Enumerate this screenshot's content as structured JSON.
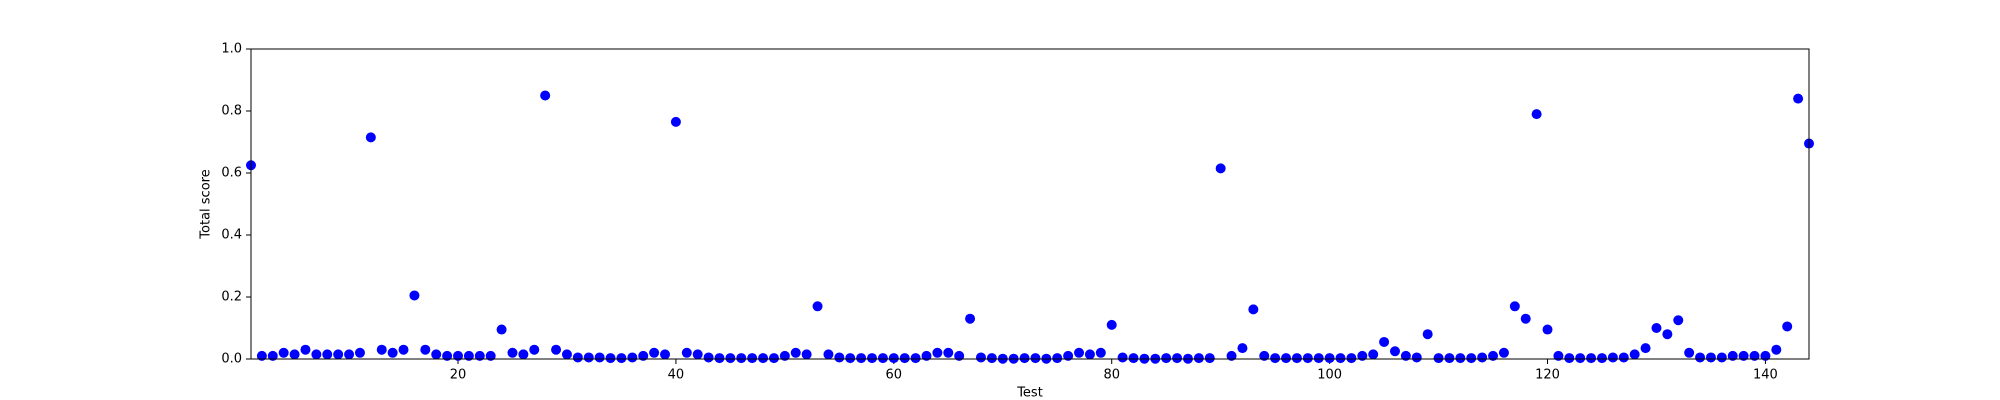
{
  "chart_data": {
    "type": "scatter",
    "x_label": "Test",
    "y_label": "Total score",
    "x": [
      1,
      2,
      3,
      4,
      5,
      6,
      7,
      8,
      9,
      10,
      11,
      12,
      13,
      14,
      15,
      16,
      17,
      18,
      19,
      20,
      21,
      22,
      23,
      24,
      25,
      26,
      27,
      28,
      29,
      30,
      31,
      32,
      33,
      34,
      35,
      36,
      37,
      38,
      39,
      40,
      41,
      42,
      43,
      44,
      45,
      46,
      47,
      48,
      49,
      50,
      51,
      52,
      53,
      54,
      55,
      56,
      57,
      58,
      59,
      60,
      61,
      62,
      63,
      64,
      65,
      66,
      67,
      68,
      69,
      70,
      71,
      72,
      73,
      74,
      75,
      76,
      77,
      78,
      79,
      80,
      81,
      82,
      83,
      84,
      85,
      86,
      87,
      88,
      89,
      90,
      91,
      92,
      93,
      94,
      95,
      96,
      97,
      98,
      99,
      100,
      101,
      102,
      103,
      104,
      105,
      106,
      107,
      108,
      109,
      110,
      111,
      112,
      113,
      114,
      115,
      116,
      117,
      118,
      119,
      120,
      121,
      122,
      123,
      124,
      125,
      126,
      127,
      128,
      129,
      130,
      131,
      132,
      133,
      134,
      135,
      136,
      137,
      138,
      139,
      140,
      141,
      142,
      143,
      144
    ],
    "values": [
      0.625,
      0.01,
      0.01,
      0.02,
      0.015,
      0.03,
      0.015,
      0.015,
      0.015,
      0.015,
      0.02,
      0.715,
      0.03,
      0.02,
      0.03,
      0.205,
      0.03,
      0.015,
      0.01,
      0.01,
      0.01,
      0.01,
      0.01,
      0.095,
      0.02,
      0.015,
      0.03,
      0.85,
      0.03,
      0.015,
      0.005,
      0.005,
      0.005,
      0.003,
      0.003,
      0.005,
      0.01,
      0.02,
      0.015,
      0.765,
      0.02,
      0.015,
      0.005,
      0.003,
      0.003,
      0.003,
      0.003,
      0.003,
      0.003,
      0.01,
      0.02,
      0.015,
      0.17,
      0.015,
      0.005,
      0.003,
      0.003,
      0.003,
      0.003,
      0.003,
      0.003,
      0.003,
      0.01,
      0.02,
      0.02,
      0.01,
      0.13,
      0.005,
      0.003,
      0.001,
      0.001,
      0.003,
      0.003,
      0.001,
      0.003,
      0.01,
      0.02,
      0.015,
      0.02,
      0.11,
      0.005,
      0.003,
      0.001,
      0.001,
      0.003,
      0.003,
      0.001,
      0.003,
      0.003,
      0.615,
      0.01,
      0.035,
      0.16,
      0.01,
      0.003,
      0.003,
      0.003,
      0.003,
      0.003,
      0.003,
      0.003,
      0.003,
      0.01,
      0.015,
      0.055,
      0.025,
      0.01,
      0.005,
      0.08,
      0.003,
      0.003,
      0.003,
      0.003,
      0.005,
      0.01,
      0.02,
      0.17,
      0.13,
      0.79,
      0.095,
      0.01,
      0.003,
      0.003,
      0.003,
      0.003,
      0.005,
      0.005,
      0.015,
      0.035,
      0.1,
      0.08,
      0.125,
      0.02,
      0.005,
      0.005,
      0.005,
      0.01,
      0.01,
      0.01,
      0.01,
      0.03,
      0.105,
      0.84,
      0.695
    ],
    "color": "#0000ff",
    "xlim": [
      1,
      144
    ],
    "xticks": [
      20,
      40,
      60,
      80,
      100,
      120,
      140
    ],
    "ylim": [
      0,
      1
    ],
    "yticks": [
      {
        "value": 0,
        "label": "0.0"
      },
      {
        "value": 0.2,
        "label": "0.2"
      },
      {
        "value": 0.4,
        "label": "0.4"
      },
      {
        "value": 0.6,
        "label": "0.6"
      },
      {
        "value": 0.8,
        "label": "0.8"
      },
      {
        "value": 1,
        "label": "1.0"
      }
    ]
  }
}
